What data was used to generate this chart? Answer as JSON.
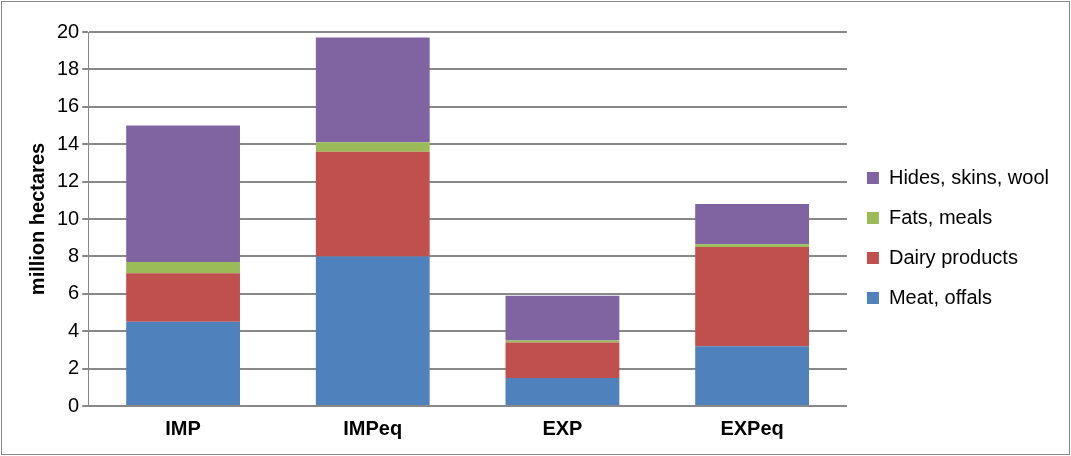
{
  "chart_data": {
    "type": "bar",
    "stacked": true,
    "ylabel": "million hectares",
    "categories": [
      "IMP",
      "IMPeq",
      "EXP",
      "EXPeq"
    ],
    "series": [
      {
        "name": "Meat, offals",
        "color": "#4f81bd",
        "values": [
          4.5,
          8.0,
          1.5,
          3.2
        ]
      },
      {
        "name": "Dairy products",
        "color": "#c0504d",
        "values": [
          2.6,
          5.6,
          1.9,
          5.3
        ]
      },
      {
        "name": "Fats, meals",
        "color": "#9bbb59",
        "values": [
          0.6,
          0.5,
          0.1,
          0.15
        ]
      },
      {
        "name": "Hides, skins, wool",
        "color": "#8064a2",
        "values": [
          7.3,
          5.6,
          2.4,
          2.15
        ]
      }
    ],
    "ylim": [
      0,
      20
    ],
    "yticks": [
      0,
      2,
      4,
      6,
      8,
      10,
      12,
      14,
      16,
      18,
      20
    ],
    "grid": "y",
    "legend": "right"
  }
}
